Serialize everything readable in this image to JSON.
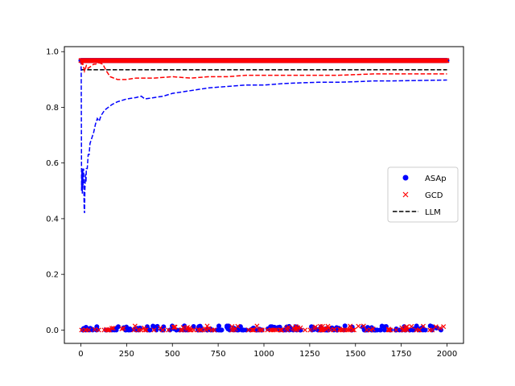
{
  "chart_data": {
    "type": "scatter",
    "title": "",
    "xlabel": "",
    "ylabel": "",
    "xlim": [
      -90,
      2090
    ],
    "ylim": [
      -0.048,
      1.018
    ],
    "x_ticks": [
      0,
      250,
      500,
      750,
      1000,
      1250,
      1500,
      1750,
      2000
    ],
    "y_ticks": [
      0.0,
      0.2,
      0.4,
      0.6,
      0.8,
      1.0
    ],
    "x_tick_labels": [
      "0",
      "250",
      "500",
      "750",
      "1000",
      "1250",
      "1500",
      "1750",
      "2000"
    ],
    "y_tick_labels": [
      "0.0",
      "0.2",
      "0.4",
      "0.6",
      "0.8",
      "1.0"
    ],
    "grid": false,
    "legend_position": "center-right",
    "series": [
      {
        "name": "ASAp",
        "kind": "scatter",
        "marker": "circle",
        "color": "#0000ff",
        "x_range": [
          0,
          2000
        ],
        "y_levels": [
          0.968,
          0.0,
          0.015
        ],
        "note": ""
      },
      {
        "name": "GCD",
        "kind": "scatter",
        "marker": "x",
        "color": "#ff0000",
        "x_range": [
          0,
          2000
        ],
        "y_levels": [
          0.968,
          0.0,
          0.015
        ]
      },
      {
        "name": "LLM",
        "kind": "line",
        "style": "dashed",
        "color": "#000000",
        "x": [
          0,
          2000
        ],
        "y": [
          0.935,
          0.935
        ]
      },
      {
        "name": "",
        "kind": "line",
        "style": "dashed",
        "color": "#0000ff",
        "x": [
          0,
          2,
          4,
          6,
          8,
          10,
          12,
          15,
          18,
          20,
          22,
          25,
          28,
          30,
          35,
          40,
          45,
          50,
          60,
          70,
          80,
          90,
          100,
          110,
          120,
          130,
          150,
          170,
          200,
          250,
          300,
          330,
          350,
          400,
          450,
          500,
          550,
          600,
          700,
          800,
          900,
          1000,
          1100,
          1200,
          1300,
          1400,
          1500,
          1600,
          1700,
          1800,
          1900,
          2000
        ],
        "y": [
          0.97,
          0.93,
          0.5,
          0.57,
          0.49,
          0.58,
          0.52,
          0.58,
          0.44,
          0.42,
          0.5,
          0.56,
          0.53,
          0.58,
          0.58,
          0.63,
          0.63,
          0.67,
          0.69,
          0.71,
          0.74,
          0.76,
          0.75,
          0.77,
          0.78,
          0.79,
          0.8,
          0.81,
          0.82,
          0.83,
          0.835,
          0.84,
          0.83,
          0.835,
          0.84,
          0.85,
          0.855,
          0.86,
          0.87,
          0.875,
          0.88,
          0.88,
          0.885,
          0.888,
          0.89,
          0.89,
          0.892,
          0.895,
          0.895,
          0.896,
          0.897,
          0.898
        ]
      },
      {
        "name": "",
        "kind": "line",
        "style": "dashed",
        "color": "#ff0000",
        "x": [
          0,
          5,
          10,
          20,
          30,
          40,
          50,
          60,
          70,
          80,
          100,
          120,
          140,
          160,
          180,
          200,
          250,
          300,
          350,
          400,
          500,
          600,
          700,
          800,
          900,
          1000,
          1200,
          1400,
          1600,
          1800,
          2000
        ],
        "y": [
          0.97,
          0.95,
          0.96,
          0.93,
          0.95,
          0.94,
          0.945,
          0.95,
          0.955,
          0.955,
          0.96,
          0.955,
          0.93,
          0.91,
          0.905,
          0.9,
          0.9,
          0.905,
          0.905,
          0.905,
          0.91,
          0.905,
          0.91,
          0.91,
          0.915,
          0.915,
          0.915,
          0.915,
          0.92,
          0.92,
          0.92
        ]
      }
    ]
  }
}
